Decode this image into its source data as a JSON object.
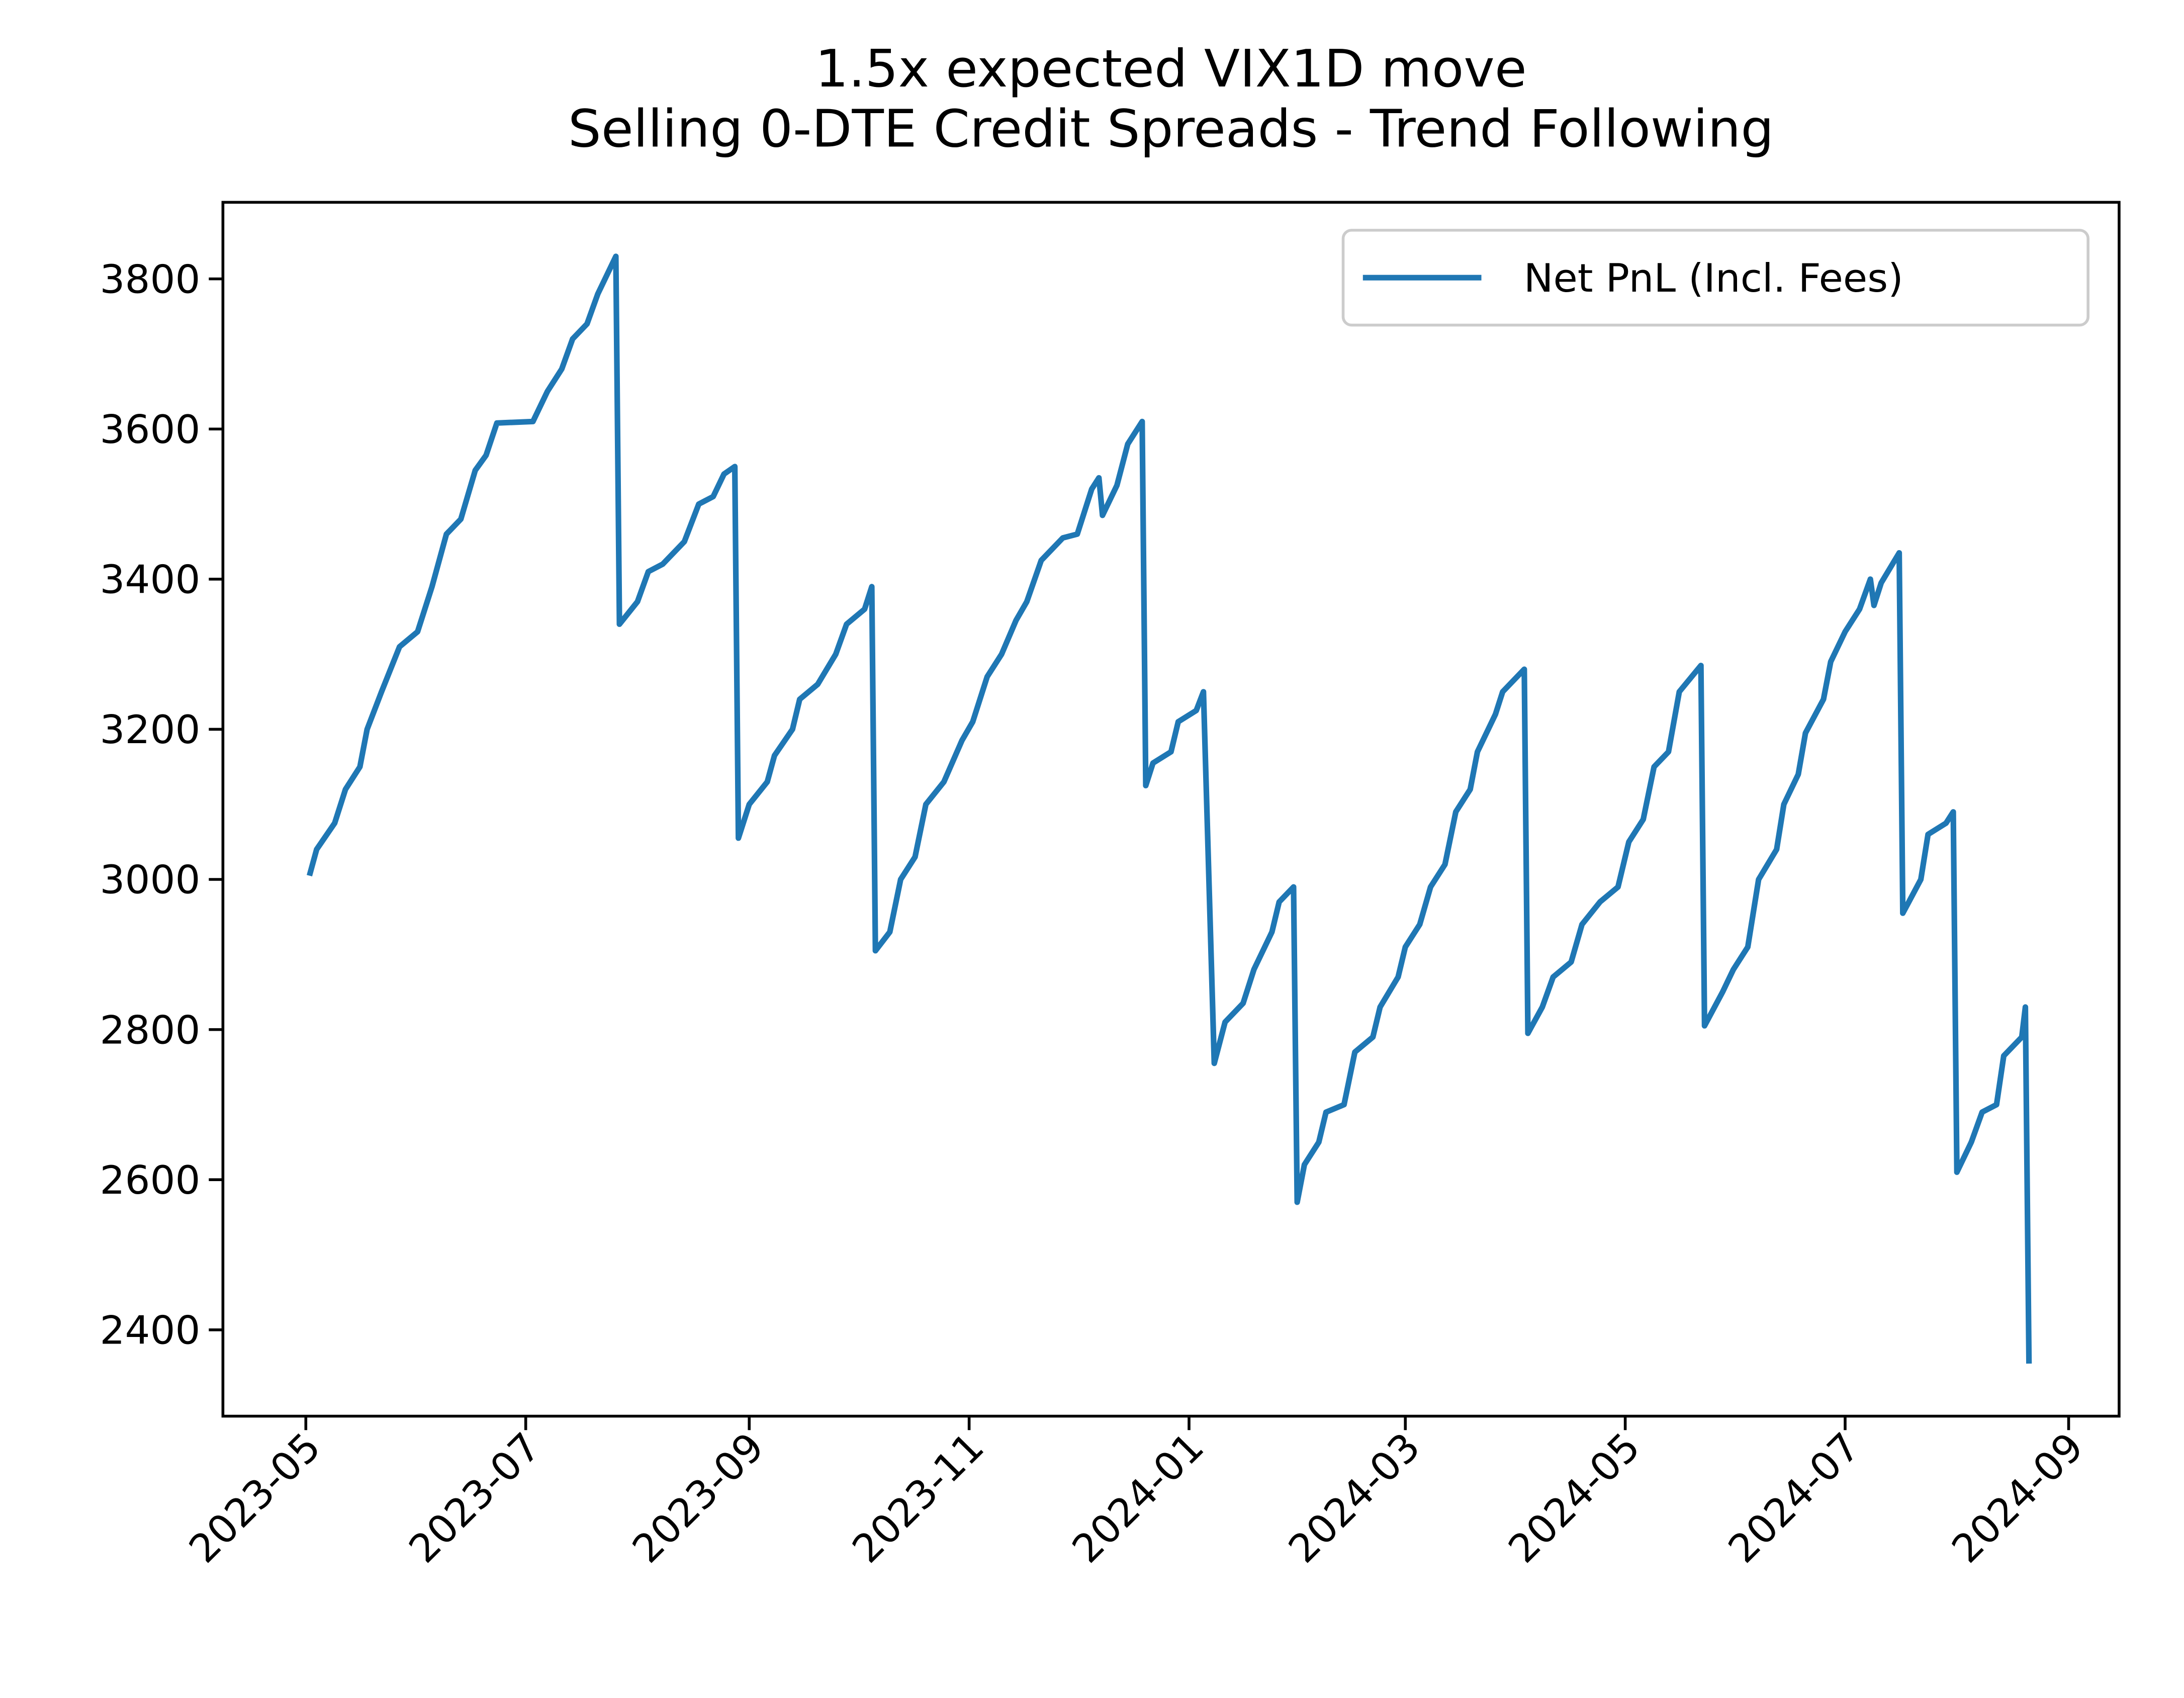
{
  "chart_data": {
    "type": "line",
    "title": "1.5x expected VIX1D move\nSelling 0-DTE Credit Spreads - Trend Following",
    "x": [
      "2023-05-02",
      "2023-05-04",
      "2023-05-09",
      "2023-05-12",
      "2023-05-16",
      "2023-05-18",
      "2023-05-22",
      "2023-05-27",
      "2023-06-01",
      "2023-06-05",
      "2023-06-09",
      "2023-06-13",
      "2023-06-17",
      "2023-06-20",
      "2023-06-23",
      "2023-07-03",
      "2023-07-07",
      "2023-07-11",
      "2023-07-14",
      "2023-07-18",
      "2023-07-21",
      "2023-07-26",
      "2023-07-27",
      "2023-08-01",
      "2023-08-04",
      "2023-08-08",
      "2023-08-14",
      "2023-08-18",
      "2023-08-22",
      "2023-08-25",
      "2023-08-28",
      "2023-08-29",
      "2023-09-01",
      "2023-09-06",
      "2023-09-08",
      "2023-09-13",
      "2023-09-15",
      "2023-09-20",
      "2023-09-25",
      "2023-09-28",
      "2023-10-03",
      "2023-10-05",
      "2023-10-06",
      "2023-10-10",
      "2023-10-13",
      "2023-10-17",
      "2023-10-20",
      "2023-10-25",
      "2023-10-30",
      "2023-11-02",
      "2023-11-06",
      "2023-11-10",
      "2023-11-14",
      "2023-11-17",
      "2023-11-21",
      "2023-11-27",
      "2023-12-01",
      "2023-12-05",
      "2023-12-07",
      "2023-12-08",
      "2023-12-12",
      "2023-12-15",
      "2023-12-19",
      "2023-12-20",
      "2023-12-22",
      "2023-12-27",
      "2023-12-29",
      "2024-01-03",
      "2024-01-05",
      "2024-01-08",
      "2024-01-11",
      "2024-01-16",
      "2024-01-19",
      "2024-01-24",
      "2024-01-26",
      "2024-01-30",
      "2024-01-31",
      "2024-02-02",
      "2024-02-06",
      "2024-02-08",
      "2024-02-13",
      "2024-02-16",
      "2024-02-21",
      "2024-02-23",
      "2024-02-28",
      "2024-03-01",
      "2024-03-05",
      "2024-03-08",
      "2024-03-12",
      "2024-03-15",
      "2024-03-19",
      "2024-03-21",
      "2024-03-26",
      "2024-03-28",
      "2024-04-03",
      "2024-04-04",
      "2024-04-08",
      "2024-04-11",
      "2024-04-16",
      "2024-04-19",
      "2024-04-24",
      "2024-04-29",
      "2024-05-02",
      "2024-05-06",
      "2024-05-09",
      "2024-05-13",
      "2024-05-16",
      "2024-05-22",
      "2024-05-23",
      "2024-05-28",
      "2024-05-31",
      "2024-06-04",
      "2024-06-07",
      "2024-06-12",
      "2024-06-14",
      "2024-06-18",
      "2024-06-20",
      "2024-06-25",
      "2024-06-27",
      "2024-07-01",
      "2024-07-05",
      "2024-07-08",
      "2024-07-09",
      "2024-07-11",
      "2024-07-16",
      "2024-07-17",
      "2024-07-22",
      "2024-07-24",
      "2024-07-29",
      "2024-07-31",
      "2024-08-01",
      "2024-08-05",
      "2024-08-08",
      "2024-08-12",
      "2024-08-14",
      "2024-08-19",
      "2024-08-20",
      "2024-08-21"
    ],
    "series": [
      {
        "name": "Net PnL (Incl. Fees)",
        "color": "#1f77b4",
        "values": [
          3005,
          3040,
          3075,
          3120,
          3150,
          3200,
          3250,
          3310,
          3330,
          3390,
          3460,
          3480,
          3545,
          3565,
          3608,
          3610,
          3650,
          3680,
          3720,
          3740,
          3780,
          3830,
          3340,
          3370,
          3410,
          3420,
          3450,
          3500,
          3510,
          3540,
          3550,
          3055,
          3100,
          3130,
          3165,
          3200,
          3240,
          3260,
          3300,
          3340,
          3360,
          3390,
          2905,
          2930,
          3000,
          3030,
          3100,
          3130,
          3185,
          3210,
          3270,
          3300,
          3345,
          3370,
          3425,
          3455,
          3460,
          3520,
          3535,
          3485,
          3525,
          3580,
          3610,
          3125,
          3155,
          3170,
          3210,
          3225,
          3250,
          2755,
          2810,
          2835,
          2880,
          2930,
          2970,
          2990,
          2570,
          2620,
          2650,
          2690,
          2700,
          2770,
          2790,
          2830,
          2870,
          2910,
          2940,
          2990,
          3020,
          3090,
          3120,
          3170,
          3220,
          3250,
          3280,
          2795,
          2830,
          2870,
          2890,
          2940,
          2970,
          2990,
          3050,
          3080,
          3150,
          3170,
          3250,
          3285,
          2805,
          2850,
          2880,
          2910,
          3000,
          3040,
          3100,
          3140,
          3195,
          3240,
          3290,
          3330,
          3360,
          3400,
          3365,
          3395,
          3435,
          2955,
          3000,
          3060,
          3075,
          3090,
          2610,
          2650,
          2690,
          2700,
          2765,
          2790,
          2830,
          2355
        ]
      }
    ],
    "xlim": [
      "2023-04-08",
      "2024-09-15"
    ],
    "xticks": [
      {
        "value": "2023-05-01",
        "label": "2023-05"
      },
      {
        "value": "2023-07-01",
        "label": "2023-07"
      },
      {
        "value": "2023-09-01",
        "label": "2023-09"
      },
      {
        "value": "2023-11-01",
        "label": "2023-11"
      },
      {
        "value": "2024-01-01",
        "label": "2024-01"
      },
      {
        "value": "2024-03-01",
        "label": "2024-03"
      },
      {
        "value": "2024-05-01",
        "label": "2024-05"
      },
      {
        "value": "2024-07-01",
        "label": "2024-07"
      },
      {
        "value": "2024-09-01",
        "label": "2024-09"
      }
    ],
    "ylim": [
      2285,
      3902
    ],
    "yticks": [
      2400,
      2600,
      2800,
      3000,
      3200,
      3400,
      3600,
      3800
    ],
    "legend": "upper right",
    "grid": false
  }
}
